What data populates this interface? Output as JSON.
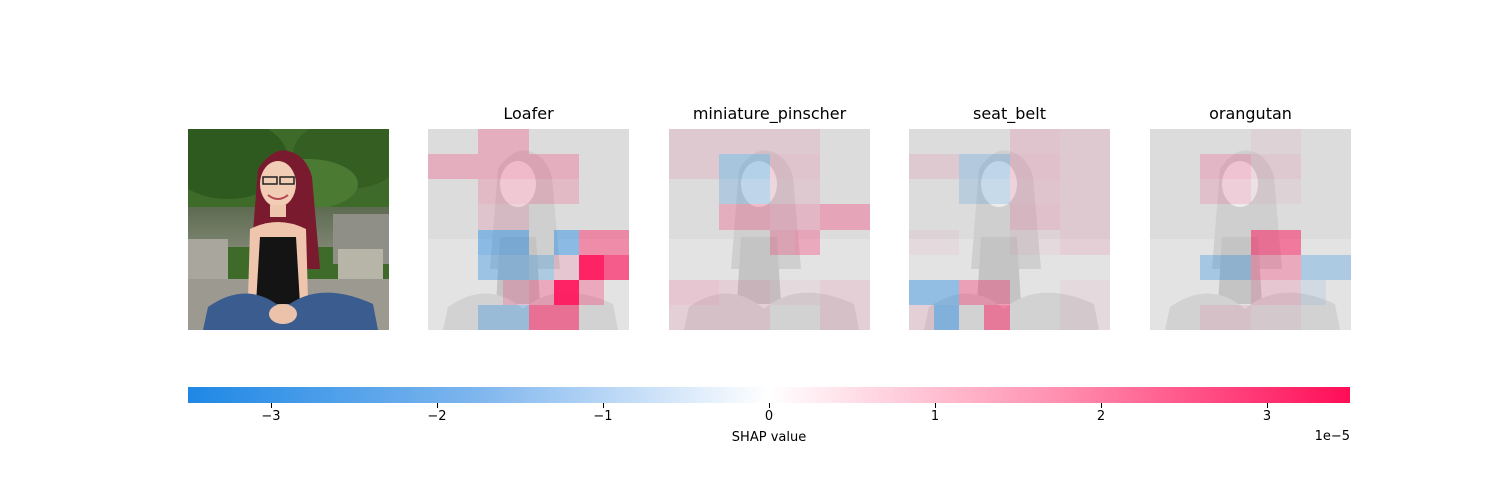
{
  "chart_data": {
    "type": "heatmap",
    "title": "",
    "panels": [
      {
        "name": "original-image",
        "title": ""
      },
      {
        "name": "Loafer",
        "title": "Loafer"
      },
      {
        "name": "miniature_pinscher",
        "title": "miniature_pinscher"
      },
      {
        "name": "seat_belt",
        "title": "seat_belt"
      },
      {
        "name": "orangutan",
        "title": "orangutan"
      }
    ],
    "grid": [
      8,
      8
    ],
    "heatmaps": [
      [
        [
          0,
          0,
          0.25,
          0.25,
          0,
          0,
          0,
          0
        ],
        [
          0.25,
          0.25,
          0.25,
          0.25,
          0.25,
          0.25,
          0,
          0
        ],
        [
          0,
          0,
          0.18,
          0.18,
          0.18,
          0.18,
          0,
          0
        ],
        [
          0,
          0,
          0.12,
          0.12,
          0,
          0,
          0,
          0
        ],
        [
          0,
          0,
          -0.5,
          -0.5,
          0,
          -0.5,
          0.45,
          0.45
        ],
        [
          0,
          0,
          -0.4,
          -0.4,
          -0.3,
          0.15,
          1.0,
          0.7
        ],
        [
          0,
          0,
          0,
          0.2,
          0.3,
          1.0,
          0.3,
          0
        ],
        [
          0,
          0,
          -0.35,
          -0.35,
          0.55,
          0.55,
          0,
          0
        ]
      ],
      [
        [
          0.1,
          0.1,
          0.1,
          0.1,
          0.1,
          0.1,
          0,
          0
        ],
        [
          0.1,
          0.1,
          -0.3,
          -0.3,
          0.12,
          0.12,
          0,
          0
        ],
        [
          0,
          0,
          -0.25,
          -0.25,
          0.1,
          0.1,
          0,
          0
        ],
        [
          0,
          0,
          0.25,
          0.25,
          0.2,
          0.2,
          0.3,
          0.3
        ],
        [
          0,
          0,
          0,
          0,
          0.25,
          0.3,
          0,
          0
        ],
        [
          0,
          0,
          0,
          0,
          0,
          0,
          0,
          0
        ],
        [
          0.15,
          0.15,
          0.1,
          0.1,
          0.05,
          0.05,
          0.1,
          0.1
        ],
        [
          0.1,
          0.1,
          0.1,
          0.1,
          0,
          0,
          0.1,
          0.1
        ]
      ],
      [
        [
          0,
          0,
          0,
          0,
          0.12,
          0.12,
          0.1,
          0.1
        ],
        [
          0.1,
          0.1,
          -0.25,
          -0.25,
          0.15,
          0.15,
          0.1,
          0.1
        ],
        [
          0,
          0,
          -0.2,
          -0.2,
          0.12,
          0.12,
          0.1,
          0.1
        ],
        [
          0,
          0,
          0,
          0,
          0.15,
          0.15,
          0.1,
          0.1
        ],
        [
          0.05,
          0.05,
          0,
          0,
          0.05,
          0.05,
          0.1,
          0.1
        ],
        [
          0,
          0,
          0,
          0,
          0,
          0,
          0,
          0
        ],
        [
          -0.45,
          -0.45,
          0.35,
          0.35,
          0,
          0,
          0.05,
          0.05
        ],
        [
          0.1,
          -0.5,
          0,
          0.5,
          0,
          0,
          0.05,
          0.05
        ]
      ],
      [
        [
          0,
          0,
          0,
          0,
          0.05,
          0.05,
          0,
          0
        ],
        [
          0,
          0,
          0.2,
          0.2,
          0.1,
          0.1,
          0,
          0
        ],
        [
          0,
          0,
          0.15,
          0.15,
          0.05,
          0.05,
          0,
          0
        ],
        [
          0,
          0,
          0,
          0,
          0,
          0,
          0,
          0
        ],
        [
          0,
          0,
          0,
          0,
          0.55,
          0.55,
          0,
          0
        ],
        [
          0,
          0,
          -0.35,
          -0.35,
          0.3,
          0.3,
          -0.3,
          -0.3
        ],
        [
          0,
          0,
          0,
          0,
          0.15,
          0.15,
          -0.1,
          0
        ],
        [
          0,
          0,
          0.1,
          0.1,
          0.05,
          0.05,
          0,
          0
        ]
      ]
    ],
    "colorbar": {
      "label": "SHAP value",
      "exponent_label": "1e−5",
      "ticks": [
        -3,
        -2,
        -1,
        0,
        1,
        2,
        3
      ],
      "tick_labels": [
        "−3",
        "−2",
        "−1",
        "0",
        "1",
        "2",
        "3"
      ],
      "range": [
        -3.5,
        3.5
      ],
      "colors": {
        "negative": "#1e88e5",
        "zero": "#ffffff",
        "positive": "#ff0d57"
      }
    }
  }
}
